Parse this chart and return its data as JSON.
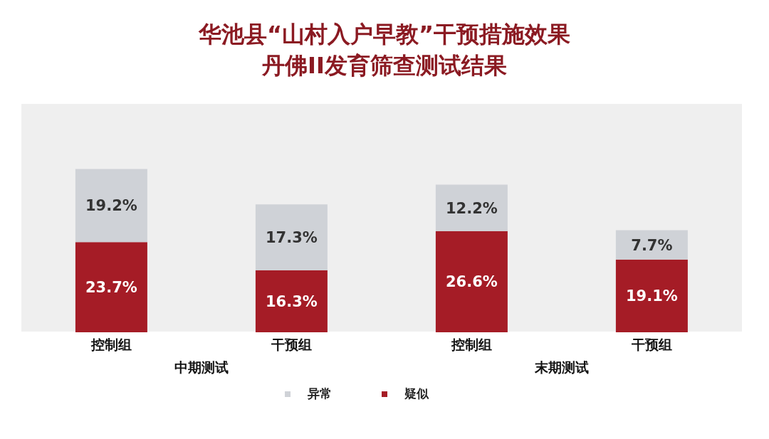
{
  "chart_data": {
    "type": "bar",
    "title": "华池县“山村入户早教”干预措施效果",
    "subtitle": "丹佛II发育筛查测试结果",
    "categories": [
      "控制组",
      "干预组",
      "控制组",
      "干预组"
    ],
    "stacked": true,
    "legend": "bottom",
    "series": [
      {
        "name": "疑似",
        "color": "#a51c26",
        "values": [
          23.7,
          16.3,
          26.6,
          19.1
        ],
        "value_labels": [
          "23.7%",
          "16.3%",
          "26.6%",
          "19.1%"
        ]
      },
      {
        "name": "异常",
        "color": "#cfd2d7",
        "values": [
          19.2,
          17.3,
          12.2,
          7.7
        ],
        "value_labels": [
          "19.2%",
          "17.3%",
          "12.2%",
          "7.7%"
        ]
      }
    ],
    "annotations": [
      "中期测试",
      "末期测试"
    ]
  }
}
